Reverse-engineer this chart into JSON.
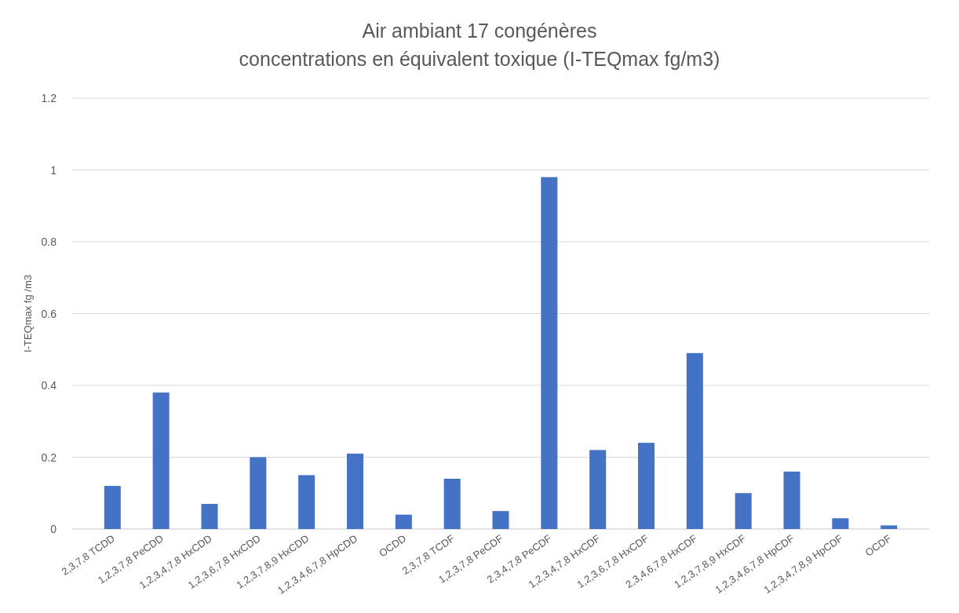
{
  "chart_data": {
    "type": "bar",
    "title": "Air ambiant 17 congénères\nconcentrations en équivalent toxique (I-TEQmax fg/m3)",
    "ylabel": "I-TEQmax fg /m3",
    "categories": [
      "2,3,7,8 TCDD",
      "1,2,3,7,8 PeCDD",
      "1,2,3,4,7,8 HxCDD",
      "1,2,3,6,7,8 HxCDD",
      "1,2,3,7,8,9 HxCDD",
      "1,2,3,4,6,7,8 HpCDD",
      "OCDD",
      "2,3,7,8 TCDF",
      "1,2,3,7,8 PeCDF",
      "2,3,4,7,8 PeCDF",
      "1,2,3,4,7,8 HxCDF",
      "1,2,3,6,7,8 HxCDF",
      "2,3,4,6,7,8 HxCDF",
      "1,2,3,7,8,9 HxCDF",
      "1,2,3,4,6,7,8 HpCDF",
      "1,2,3,4,7,8,9 HpCDF",
      "OCDF"
    ],
    "values": [
      0.12,
      0.38,
      0.07,
      0.2,
      0.15,
      0.21,
      0.04,
      0.14,
      0.05,
      0.98,
      0.22,
      0.24,
      0.49,
      0.1,
      0.16,
      0.03,
      0.01
    ],
    "color": "#4472c4",
    "ylim": [
      0,
      1.2
    ],
    "yticks": [
      0,
      0.2,
      0.4,
      0.6,
      0.8,
      1,
      1.2
    ],
    "grid": "y"
  }
}
